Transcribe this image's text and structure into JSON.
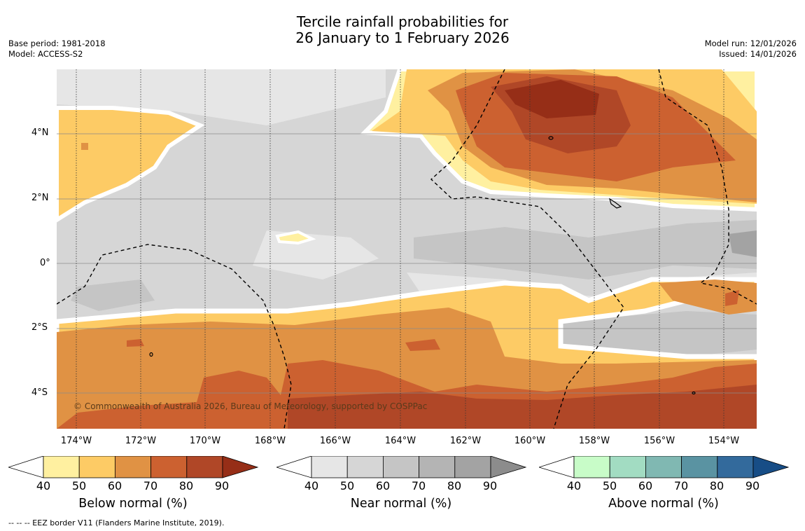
{
  "title": {
    "line1": "Tercile rainfall probabilities for",
    "line2": "26 January to 1 February 2026"
  },
  "meta_left": {
    "base_period": "Base period: 1981-2018",
    "model": "Model: ACCESS-S2"
  },
  "meta_right": {
    "model_run": "Model run: 12/01/2026",
    "issued": "Issued: 14/01/2026"
  },
  "map": {
    "x_ticks": [
      "174°W",
      "172°W",
      "170°W",
      "168°W",
      "166°W",
      "164°W",
      "162°W",
      "160°W",
      "158°W",
      "156°W",
      "154°W"
    ],
    "y_ticks": [
      "4°N",
      "2°N",
      "0°",
      "2°S",
      "4°S"
    ],
    "copyright": "© Commonwealth of Australia 2026, Bureau of Meteorology, supported by COSPPac"
  },
  "colorbars": [
    {
      "label": "Below normal (%)",
      "ticks": [
        "40",
        "50",
        "60",
        "70",
        "80",
        "90"
      ],
      "colors": [
        "#fff0a0",
        "#fdcb65",
        "#e09244",
        "#cc6130",
        "#b04727",
        "#962e17"
      ]
    },
    {
      "label": "Near normal (%)",
      "ticks": [
        "40",
        "50",
        "60",
        "70",
        "80",
        "90"
      ],
      "colors": [
        "#e6e6e6",
        "#d6d6d6",
        "#c5c5c5",
        "#b4b4b4",
        "#a3a3a3",
        "#8c8c8c"
      ]
    },
    {
      "label": "Above normal (%)",
      "ticks": [
        "40",
        "50",
        "60",
        "70",
        "80",
        "90"
      ],
      "colors": [
        "#c8fcc8",
        "#a2dcc2",
        "#80b8b2",
        "#5a93a2",
        "#336a9c",
        "#174d86"
      ]
    }
  ],
  "footer": "--  --  -- EEZ border V11 (Flanders Marine Institute, 2019)."
}
